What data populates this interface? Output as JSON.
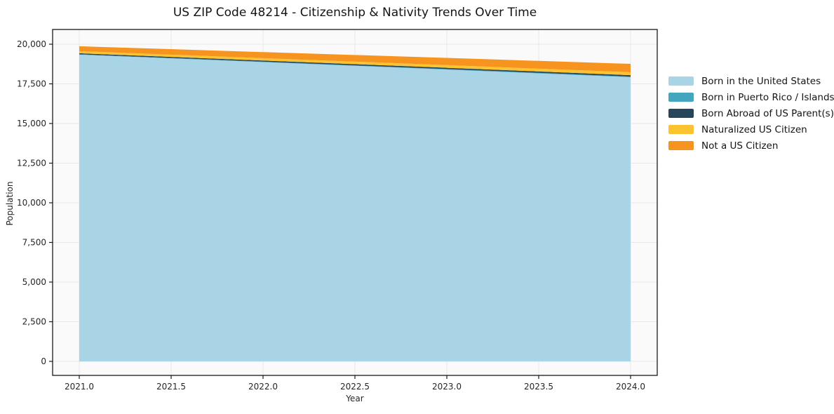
{
  "chart_data": {
    "type": "area",
    "stacked": true,
    "title": "US ZIP Code 48214 - Citizenship & Nativity Trends Over Time",
    "xlabel": "Year",
    "ylabel": "Population",
    "x": [
      2021,
      2022,
      2023,
      2024
    ],
    "series": [
      {
        "name": "Born in the United States",
        "color": "#a9d4e5",
        "values": [
          19340,
          18870,
          18400,
          17920
        ]
      },
      {
        "name": "Born in Puerto Rico / Islands",
        "color": "#44a5bf",
        "values": [
          25,
          30,
          35,
          40
        ]
      },
      {
        "name": "Born Abroad of US Parent(s)",
        "color": "#27465c",
        "values": [
          65,
          75,
          80,
          90
        ]
      },
      {
        "name": "Naturalized US Citizen",
        "color": "#fcc330",
        "values": [
          130,
          145,
          165,
          180
        ]
      },
      {
        "name": "Not a US Citizen",
        "color": "#f7941f",
        "values": [
          310,
          385,
          455,
          530
        ]
      }
    ],
    "xlim": [
      2021,
      2024
    ],
    "ylim": [
      0,
      20000
    ],
    "xticks": [
      2021.0,
      2021.5,
      2022.0,
      2022.5,
      2023.0,
      2023.5,
      2024.0
    ],
    "xtick_labels": [
      "2021.0",
      "2021.5",
      "2022.0",
      "2022.5",
      "2023.0",
      "2023.5",
      "2024.0"
    ],
    "yticks": [
      0,
      2500,
      5000,
      7500,
      10000,
      12500,
      15000,
      17500,
      20000
    ],
    "ytick_labels": [
      "0",
      "2,500",
      "5,000",
      "7,500",
      "10,000",
      "12,500",
      "15,000",
      "17,500",
      "20,000"
    ],
    "grid": true,
    "legend_position": "outside-right",
    "colors": {
      "plot_background": "#fafafa",
      "grid": "#e8e8e8",
      "frame": "#1a1a1a",
      "text": "#262626"
    }
  }
}
